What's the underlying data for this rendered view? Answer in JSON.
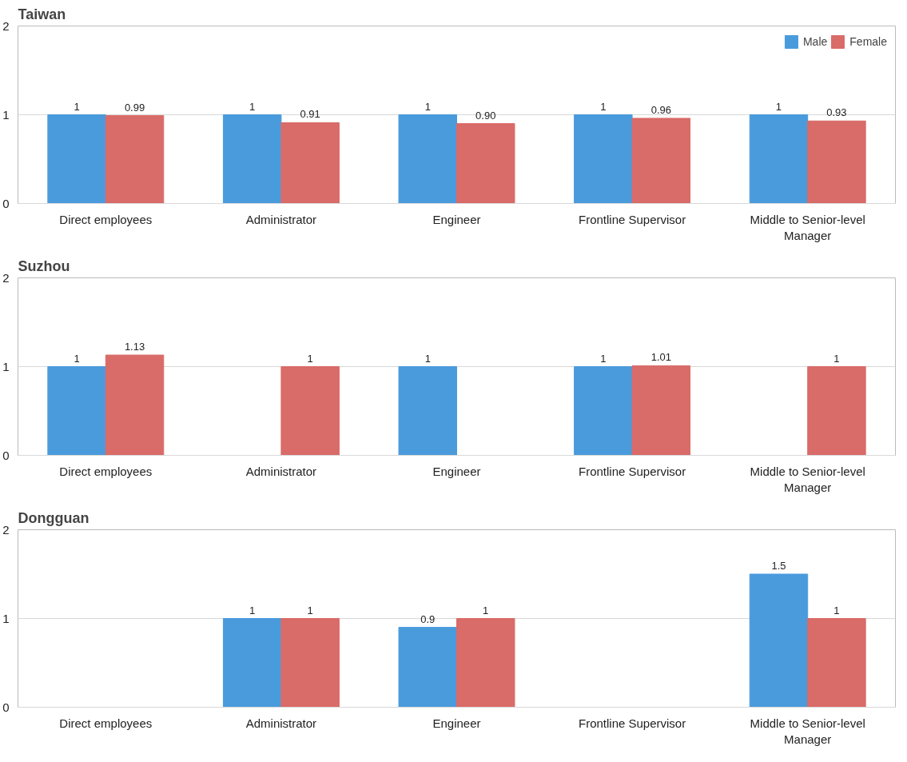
{
  "chart_data": [
    {
      "type": "bar",
      "title": "Taiwan",
      "categories": [
        "Direct employees",
        "Administrator",
        "Engineer",
        "Frontline Supervisor",
        "Middle to Senior-level Manager"
      ],
      "series": [
        {
          "name": "Male",
          "color": "#4a9bdc",
          "values": [
            1,
            1,
            1,
            1,
            1
          ],
          "value_labels": [
            "1",
            "1",
            "1",
            "1",
            "1"
          ]
        },
        {
          "name": "Female",
          "color": "#d96b68",
          "values": [
            0.99,
            0.91,
            0.9,
            0.96,
            0.93
          ],
          "value_labels": [
            "0.99",
            "0.91",
            "0.90",
            "0.96",
            "0.93"
          ]
        }
      ],
      "ylim": [
        0,
        2
      ],
      "yticks": [
        0,
        1,
        2
      ],
      "grid": "y",
      "legend": "top right"
    },
    {
      "type": "bar",
      "title": "Suzhou",
      "categories": [
        "Direct employees",
        "Administrator",
        "Engineer",
        "Frontline Supervisor",
        "Middle to Senior-level Manager"
      ],
      "series": [
        {
          "color": "#4a9bdc",
          "values": [
            1,
            null,
            1,
            1,
            null
          ],
          "value_labels": [
            "1",
            null,
            "1",
            "1",
            null
          ]
        },
        {
          "color": "#d96b68",
          "values": [
            1.13,
            1,
            null,
            1.01,
            1
          ],
          "value_labels": [
            "1.13",
            "1",
            null,
            "1.01",
            "1"
          ]
        }
      ],
      "ylim": [
        0,
        2
      ],
      "yticks": [
        0,
        1,
        2
      ],
      "grid": "y"
    },
    {
      "type": "bar",
      "title": "Dongguan",
      "categories": [
        "Direct employees",
        "Administrator",
        "Engineer",
        "Frontline Supervisor",
        "Middle to Senior-level Manager"
      ],
      "series": [
        {
          "color": "#4a9bdc",
          "values": [
            null,
            1,
            0.9,
            null,
            1.5
          ],
          "value_labels": [
            null,
            "1",
            "0.9",
            null,
            "1.5"
          ]
        },
        {
          "color": "#d96b68",
          "values": [
            null,
            1,
            1,
            null,
            1
          ],
          "value_labels": [
            null,
            "1",
            "1",
            null,
            "1"
          ]
        }
      ],
      "ylim": [
        0,
        2
      ],
      "yticks": [
        0,
        1,
        2
      ],
      "grid": "y"
    }
  ]
}
